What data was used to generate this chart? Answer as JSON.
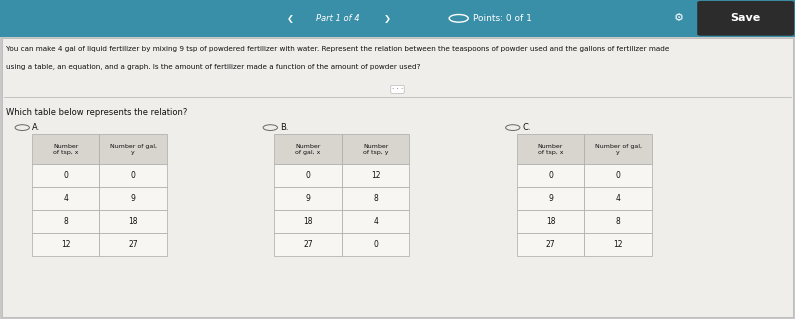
{
  "title_bar_text": "Part 1 of 4",
  "points_text": "Points: 0 of 1",
  "save_button_text": "Save",
  "bg_color": "#c8c8c8",
  "content_bg": "#f0eeeb",
  "question_text_line1": "You can make 4 gal of liquid fertilizer by mixing 9 tsp of powdered fertilizer with water. Represent the relation between the teaspoons of powder used and the gallons of fertilizer made",
  "question_text_line2": "using a table, an equation, and a graph. Is the amount of fertilizer made a function of the amount of powder used?",
  "sub_question": "Which table below represents the relation?",
  "radio_labels": [
    "A.",
    "B.",
    "C."
  ],
  "table_A": {
    "headers": [
      "Number  Number of gal,",
      "of tsp, x        y"
    ],
    "col1_header": "Number\nof tsp, x",
    "col2_header": "Number of gal,\ny",
    "rows": [
      [
        "0",
        "0"
      ],
      [
        "4",
        "9"
      ],
      [
        "8",
        "18"
      ],
      [
        "12",
        "27"
      ]
    ]
  },
  "table_B": {
    "col1_header": "Number\nof gal, x",
    "col2_header": "Number\nof tsp, y",
    "rows": [
      [
        "0",
        "12"
      ],
      [
        "9",
        "8"
      ],
      [
        "18",
        "4"
      ],
      [
        "27",
        "0"
      ]
    ]
  },
  "table_C": {
    "col1_header": "Number\nof tsp, x",
    "col2_header": "Number of gal,\ny",
    "rows": [
      [
        "0",
        "0"
      ],
      [
        "9",
        "4"
      ],
      [
        "18",
        "8"
      ],
      [
        "27",
        "12"
      ]
    ]
  },
  "header_bg": "#d8d4ce",
  "row_bg": "#f8f6f3",
  "border_color": "#aaaaaa",
  "text_color": "#111111",
  "top_bar_bg": "#3a8fa8",
  "save_btn_color": "#2a2a2a"
}
